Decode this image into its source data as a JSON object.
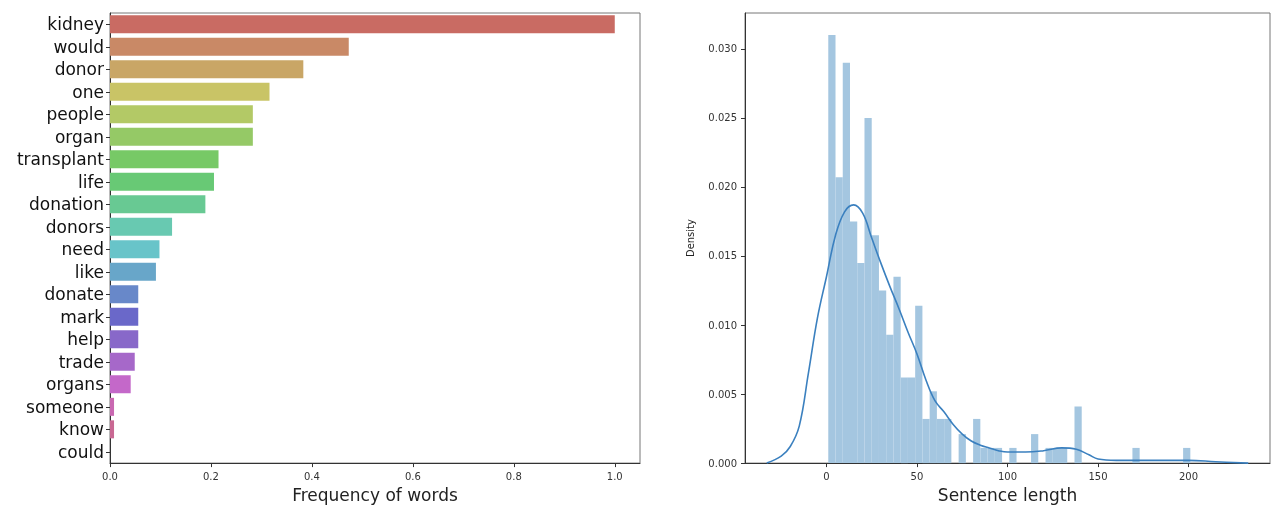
{
  "chart_data": [
    {
      "type": "bar",
      "orientation": "horizontal",
      "xlabel": "Frequency of words",
      "categories": [
        "kidney",
        "would",
        "donor",
        "one",
        "people",
        "organ",
        "transplant",
        "life",
        "donation",
        "donors",
        "need",
        "like",
        "donate",
        "mark",
        "help",
        "trade",
        "organs",
        "someone",
        "know",
        "could"
      ],
      "values": [
        1.0,
        0.473,
        0.383,
        0.316,
        0.283,
        0.283,
        0.215,
        0.206,
        0.189,
        0.123,
        0.098,
        0.091,
        0.056,
        0.056,
        0.056,
        0.049,
        0.041,
        0.008,
        0.008,
        0
      ],
      "colors": [
        "#c96b63",
        "#c98966",
        "#c9a666",
        "#c9c466",
        "#b3c966",
        "#95c966",
        "#77c966",
        "#68c975",
        "#68c993",
        "#68c9b1",
        "#68c4c9",
        "#68a6c9",
        "#6888c9",
        "#6a68c9",
        "#8868c9",
        "#a668c9",
        "#c468c9",
        "#c968b1",
        "#c96893",
        "#c96875"
      ],
      "xlim": [
        0,
        1.05
      ],
      "xticks": [
        {
          "value": 0,
          "label": "0.0"
        },
        {
          "value": 0.2,
          "label": "0.2"
        },
        {
          "value": 0.4,
          "label": "0.4"
        },
        {
          "value": 0.6,
          "label": "0.6"
        },
        {
          "value": 0.8,
          "label": "0.8"
        },
        {
          "value": 1.0,
          "label": "1.0"
        }
      ],
      "grid": false
    },
    {
      "type": "histogram",
      "xlabel": "Sentence length",
      "ylabel": "Density",
      "bins": [
        1,
        5,
        9,
        13,
        17,
        21,
        25,
        29,
        33,
        37,
        41,
        45,
        49,
        53,
        57,
        61,
        65,
        69,
        73,
        77,
        81,
        85,
        89,
        93,
        97,
        101,
        105,
        109,
        113,
        117,
        121,
        125,
        129,
        133,
        137,
        141,
        145,
        149,
        153,
        157,
        161,
        165,
        169,
        173,
        177,
        181,
        185,
        189,
        193,
        197,
        201
      ],
      "series": [
        {
          "type": "histogram",
          "color": "#a4c6e0",
          "values": [
            0.031,
            0.0207,
            0.029,
            0.0175,
            0.0145,
            0.025,
            0.0165,
            0.0125,
            0.0093,
            0.0135,
            0.0062,
            0.0062,
            0.0114,
            0.0032,
            0.0052,
            0.0032,
            0.0032,
            0,
            0.0021,
            0,
            0.0032,
            0.0011,
            0.0011,
            0.0011,
            0,
            0.0011,
            0,
            0,
            0.0021,
            0,
            0.0011,
            0.0011,
            0.0011,
            0,
            0.0041,
            0,
            0,
            0,
            0,
            0,
            0,
            0,
            0.0011,
            0,
            0,
            0,
            0,
            0,
            0,
            0.0011
          ]
        },
        {
          "type": "line",
          "color": "#3b80bf",
          "x": [
            -33,
            -25,
            -20,
            -15,
            -10,
            -5,
            0,
            5,
            10,
            15,
            20,
            25,
            30,
            35,
            40,
            45,
            50,
            55,
            60,
            65,
            70,
            75,
            80,
            85,
            90,
            95,
            100,
            105,
            110,
            120,
            130,
            138,
            145,
            150,
            160,
            180,
            200,
            215,
            233
          ],
          "values": [
            0,
            0.0005,
            0.0012,
            0.0027,
            0.0065,
            0.0105,
            0.0135,
            0.0165,
            0.0182,
            0.0187,
            0.0181,
            0.0163,
            0.0145,
            0.0128,
            0.0112,
            0.0095,
            0.0079,
            0.006,
            0.0045,
            0.0037,
            0.0028,
            0.0021,
            0.0016,
            0.0013,
            0.0011,
            0.0009,
            0.0008,
            0.0008,
            0.0008,
            0.0009,
            0.0011,
            0.001,
            0.0006,
            0.0003,
            0.0002,
            0.0002,
            0.0002,
            0.0001,
            0
          ]
        }
      ],
      "xlim": [
        -45,
        245
      ],
      "xticks": [
        0,
        50,
        100,
        150,
        200
      ],
      "ylim": [
        0,
        0.0326
      ],
      "yticks": [
        {
          "value": 0,
          "label": "0.000"
        },
        {
          "value": 0.005,
          "label": "0.005"
        },
        {
          "value": 0.01,
          "label": "0.010"
        },
        {
          "value": 0.015,
          "label": "0.015"
        },
        {
          "value": 0.02,
          "label": "0.020"
        },
        {
          "value": 0.025,
          "label": "0.025"
        },
        {
          "value": 0.03,
          "label": "0.030"
        }
      ],
      "grid": false
    }
  ]
}
